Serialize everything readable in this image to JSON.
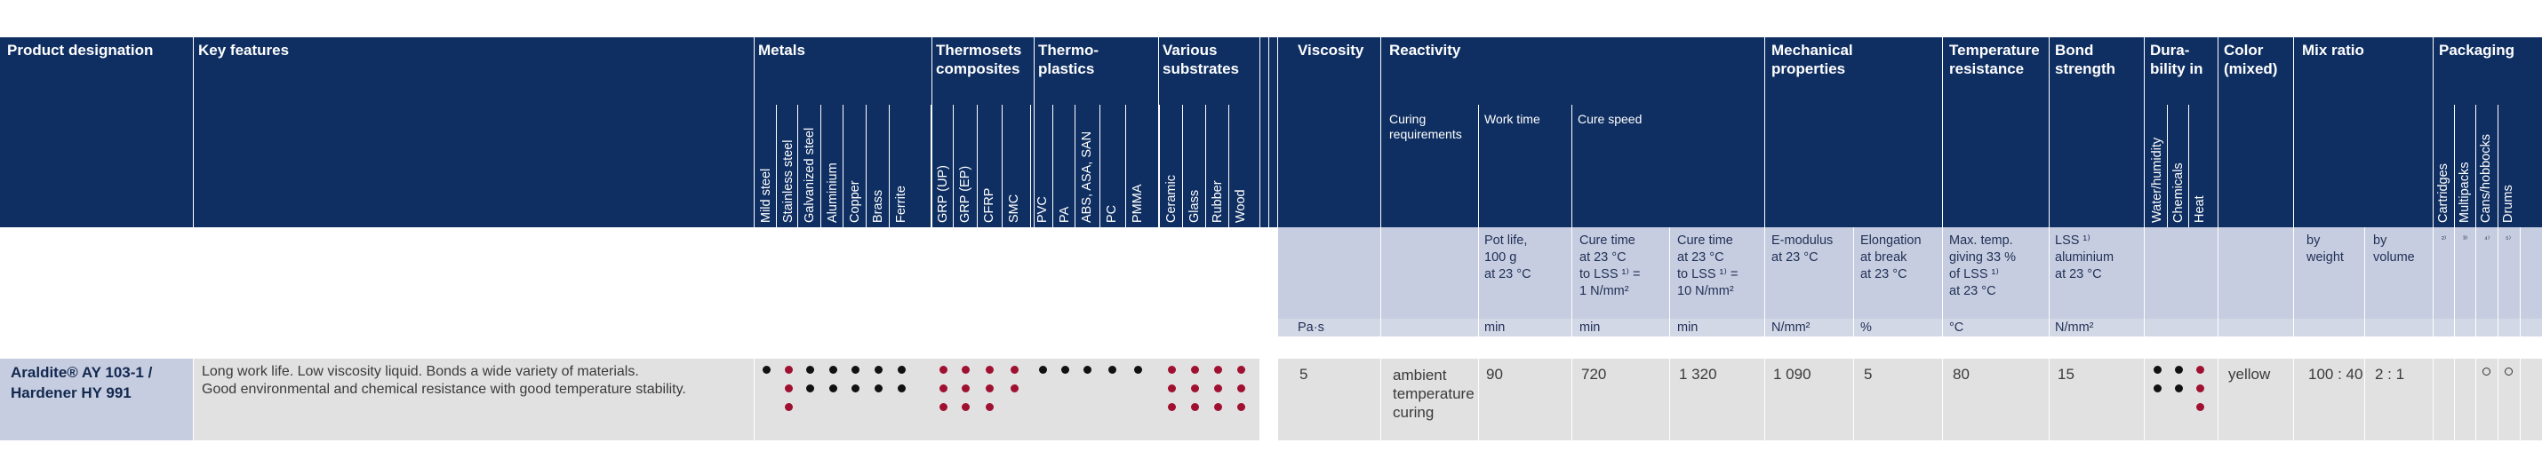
{
  "headers": {
    "product_designation": "Product designation",
    "key_features": "Key features",
    "metals": "Metals",
    "thermosets_1": "Thermosets",
    "thermosets_2": "composites",
    "thermoplastics_1": "Thermo-",
    "thermoplastics_2": "plastics",
    "various_1": "Various",
    "various_2": "substrates",
    "viscosity": "Viscosity",
    "reactivity": "Reactivity",
    "mechanical_1": "Mechanical",
    "mechanical_2": "properties",
    "temperature_1": "Temperature",
    "temperature_2": "resistance",
    "bond_1": "Bond",
    "bond_2": "strength",
    "durability_1": "Dura-",
    "durability_2": "bility in",
    "color_1": "Color",
    "color_2": "(mixed)",
    "mix_ratio": "Mix ratio",
    "packaging": "Packaging"
  },
  "subheaders": {
    "curing_1": "Curing",
    "curing_2": "requirements",
    "work_time": "Work time",
    "cure_speed": "Cure speed"
  },
  "substrates": [
    "Mild steel",
    "Stainless steel",
    "Galvanized steel",
    "Aluminium",
    "Copper",
    "Brass",
    "Ferrite",
    "GRP (UP)",
    "GRP (EP)",
    "CFRP",
    "SMC",
    "PVC",
    "PA",
    "ABS, ASA, SAN",
    "PC",
    "PMMA",
    "Ceramic",
    "Glass",
    "Rubber",
    "Wood"
  ],
  "durability_labels": [
    "Water/humidity",
    "Chemicals",
    "Heat"
  ],
  "packaging_labels": [
    "Cartridges",
    "Multipacks",
    "Cans/hobbocks",
    "Drums"
  ],
  "notes": {
    "pot_life": [
      "Pot life,",
      "100 g",
      "at 23 °C"
    ],
    "cure_23_1": [
      "Cure time",
      "at 23 °C",
      "to LSS ¹⁾ =",
      "1 N/mm²"
    ],
    "cure_23_10": [
      "Cure time",
      "at 23 °C",
      "to LSS ¹⁾ =",
      "10 N/mm²"
    ],
    "emod": [
      "E-modulus",
      "at 23 °C"
    ],
    "elong": [
      "Elongation",
      "at break",
      "at 23 °C"
    ],
    "maxtemp": [
      "Max. temp.",
      "giving 33 %",
      "of LSS ¹⁾",
      "at 23 °C"
    ],
    "lss": [
      "LSS ¹⁾",
      "aluminium",
      "at 23 °C"
    ],
    "by_weight": [
      "by",
      "weight"
    ],
    "by_volume": [
      "by",
      "volume"
    ],
    "pkg_sups": [
      "²⁾",
      "³⁾",
      "⁴⁾",
      "⁵⁾"
    ]
  },
  "units": {
    "viscosity": "Pa·s",
    "work_time": "min",
    "cure_1": "min",
    "cure_10": "min",
    "emod": "N/mm²",
    "elong": "%",
    "temp": "°C",
    "lss": "N/mm²"
  },
  "product": {
    "name_line1": "Araldite® AY 103-1 /",
    "name_line2": "Hardener HY 991",
    "features_line1": "Long work life. Low viscosity liquid. Bonds a wide variety of materials.",
    "features_line2": "Good environmental and chemical resistance with good temperature stability.",
    "viscosity": "5",
    "curing": [
      "ambient",
      "temperature",
      "curing"
    ],
    "work_time": "90",
    "cure_1": "720",
    "cure_10": "1 320",
    "emod": "1 090",
    "elong": "5",
    "maxtemp": "80",
    "lss": "15",
    "color": "yellow",
    "mix_weight": "100 : 40",
    "mix_volume": "2 : 1",
    "packaging_marks": [
      "",
      "",
      "o",
      "o"
    ],
    "substrate_ratings": [
      [
        "black"
      ],
      [
        "red",
        "red",
        "red"
      ],
      [
        "black",
        "black"
      ],
      [
        "black",
        "black"
      ],
      [
        "black",
        "black"
      ],
      [
        "black",
        "black"
      ],
      [
        "black",
        "black"
      ],
      [
        "red",
        "red",
        "red"
      ],
      [
        "red",
        "red",
        "red"
      ],
      [
        "red",
        "red",
        "red"
      ],
      [
        "red",
        "red"
      ],
      [
        "black"
      ],
      [
        "black"
      ],
      [
        "black"
      ],
      [
        "black"
      ],
      [
        "black"
      ],
      [
        "red",
        "red",
        "red"
      ],
      [
        "red",
        "red",
        "red"
      ],
      [
        "red",
        "red",
        "red"
      ],
      [
        "red",
        "red",
        "red"
      ]
    ],
    "durability_ratings": [
      [
        "black",
        "black"
      ],
      [
        "black",
        "black"
      ],
      [
        "red",
        "red",
        "red"
      ]
    ]
  },
  "colors": {
    "header_bg": "#0f2f62",
    "band_bg": "#c6cde0",
    "row_bg": "#e1e1e1",
    "dot_black": "#111111",
    "dot_red": "#a01030"
  }
}
